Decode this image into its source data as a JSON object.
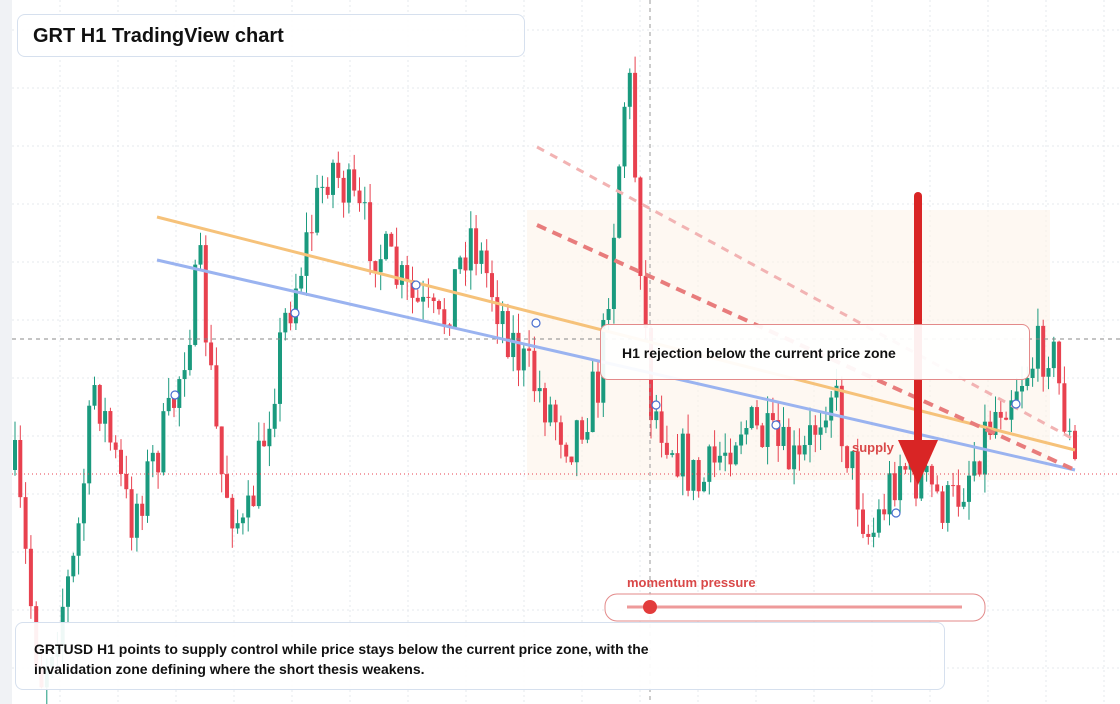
{
  "header": {
    "title": "GRT H1 TradingView chart"
  },
  "annotations": {
    "callout": "H1 rejection below the current price zone",
    "zone_label": "supply",
    "momentum_label": "momentum pressure"
  },
  "caption": "GRTUSD H1 points to supply control while price stays below the current price zone, with the invalidation zone defining where the short thesis weakens."
}
